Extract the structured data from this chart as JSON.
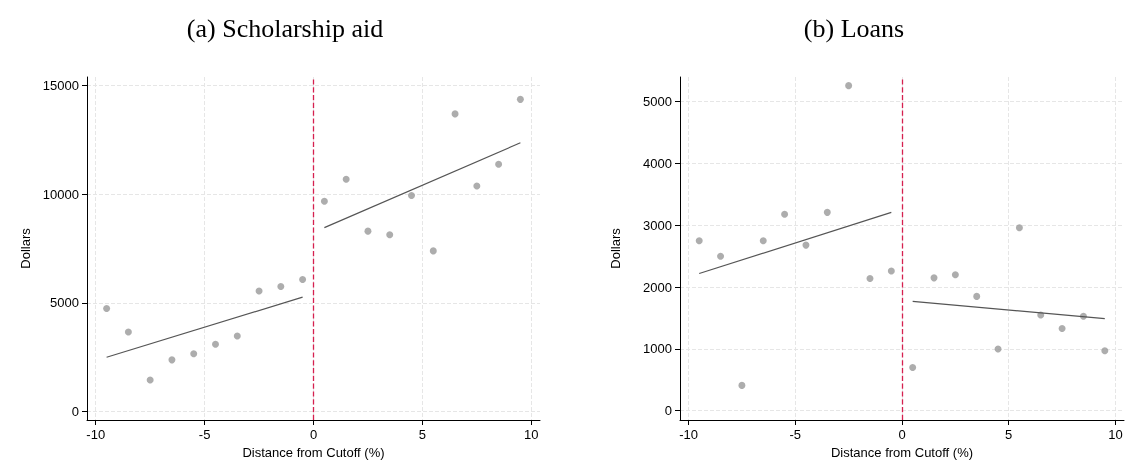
{
  "chart_data": [
    {
      "type": "scatter",
      "title": "(a) Scholarship aid",
      "xlabel": "Distance from Cutoff (%)",
      "ylabel": "Dollars",
      "x": [
        -9.5,
        -8.5,
        -7.5,
        -6.5,
        -5.5,
        -4.5,
        -3.5,
        -2.5,
        -1.5,
        -0.5,
        0.5,
        1.5,
        2.5,
        3.5,
        4.5,
        5.5,
        6.5,
        7.5,
        8.5,
        9.5
      ],
      "series": [
        {
          "color": "#999999",
          "marker": "circle",
          "values": [
            4740,
            3650,
            1440,
            2370,
            2650,
            3090,
            3470,
            5540,
            5750,
            6070,
            9680,
            10690,
            8300,
            8130,
            9940,
            7390,
            13700,
            10380,
            11380,
            14370
          ]
        },
        {
          "type": "line",
          "color": "#555555",
          "marker": "none",
          "line_style": "solid",
          "x": [
            -9.5,
            -0.5
          ],
          "values": [
            2490,
            5260
          ]
        },
        {
          "type": "line",
          "color": "#555555",
          "marker": "none",
          "line_style": "solid",
          "x": [
            0.5,
            9.5
          ],
          "values": [
            8460,
            12370
          ]
        }
      ],
      "xlim": [
        -10.4,
        10.4
      ],
      "xticks": [
        -10,
        -5,
        0,
        5,
        10
      ],
      "ylim": [
        -400,
        15400
      ],
      "yticks": [
        0,
        5000,
        10000,
        15000
      ],
      "grid": true,
      "ref_lines": [
        {
          "axis": "x",
          "value": 0,
          "color": "#d6204f",
          "line_style": "dashed"
        }
      ]
    },
    {
      "type": "scatter",
      "title": "(b) Loans",
      "xlabel": "Distance from Cutoff (%)",
      "ylabel": "Dollars",
      "x": [
        -9.5,
        -8.5,
        -7.5,
        -6.5,
        -5.5,
        -4.5,
        -3.5,
        -2.5,
        -1.5,
        -0.5,
        0.5,
        1.5,
        2.5,
        3.5,
        4.5,
        5.5,
        6.5,
        7.5,
        8.5,
        9.5
      ],
      "series": [
        {
          "color": "#999999",
          "marker": "circle",
          "values": [
            2750,
            2500,
            410,
            2750,
            3180,
            2680,
            3210,
            5260,
            2140,
            2260,
            700,
            2150,
            2200,
            1850,
            1000,
            2960,
            1550,
            1330,
            1530,
            970
          ]
        },
        {
          "type": "line",
          "color": "#555555",
          "marker": "none",
          "line_style": "solid",
          "x": [
            -9.5,
            -0.5
          ],
          "values": [
            2220,
            3210
          ]
        },
        {
          "type": "line",
          "color": "#555555",
          "marker": "none",
          "line_style": "solid",
          "x": [
            0.5,
            9.5
          ],
          "values": [
            1770,
            1490
          ]
        }
      ],
      "xlim": [
        -10.4,
        10.4
      ],
      "xticks": [
        -10,
        -5,
        0,
        5,
        10
      ],
      "ylim": [
        -150,
        5400
      ],
      "yticks": [
        0,
        1000,
        2000,
        3000,
        4000,
        5000
      ],
      "grid": true,
      "ref_lines": [
        {
          "axis": "x",
          "value": 0,
          "color": "#d6204f",
          "line_style": "dashed"
        }
      ]
    }
  ]
}
